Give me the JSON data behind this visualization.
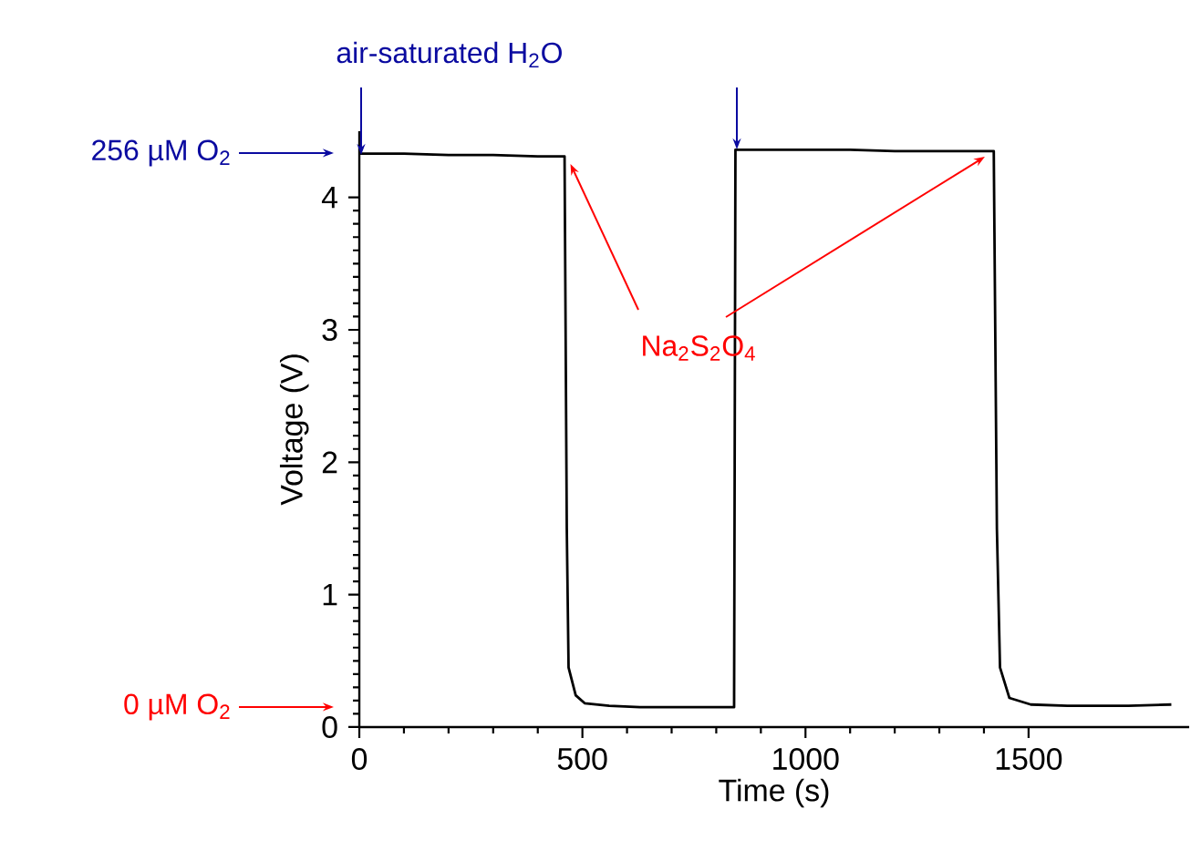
{
  "chart_data": {
    "type": "line",
    "xlabel": "Time (s)",
    "ylabel": "Voltage (V)",
    "x": [
      2,
      100,
      200,
      300,
      400,
      460,
      465,
      469,
      485,
      505,
      560,
      629,
      700,
      800,
      840,
      843,
      900,
      1000,
      1100,
      1200,
      1300,
      1422,
      1429,
      1436,
      1457,
      1505,
      1587,
      1724,
      1820
    ],
    "series": [
      {
        "color": "#000000",
        "values": [
          4.33,
          4.33,
          4.32,
          4.32,
          4.31,
          4.31,
          1.5,
          0.45,
          0.24,
          0.18,
          0.16,
          0.15,
          0.15,
          0.15,
          0.15,
          4.36,
          4.36,
          4.36,
          4.36,
          4.35,
          4.35,
          4.35,
          1.5,
          0.45,
          0.22,
          0.17,
          0.16,
          0.16,
          0.17
        ]
      }
    ],
    "xlim": [
      0,
      1860
    ],
    "ylim": [
      0,
      4.5
    ],
    "xticks": [
      0,
      500,
      1000,
      1500
    ],
    "yticks": [
      0,
      1,
      2,
      3,
      4
    ],
    "grid": false,
    "marker": "none",
    "line_style": "solid",
    "annotations": [
      "air-saturated H$_{2}$O",
      "256 µM O$_{2}$",
      "0 µM O$_{2}$",
      {
        "text": "Na$_{2}$S$_{2}$O$_{4}$",
        "x": 465,
        "y": 4.28
      }
    ]
  }
}
